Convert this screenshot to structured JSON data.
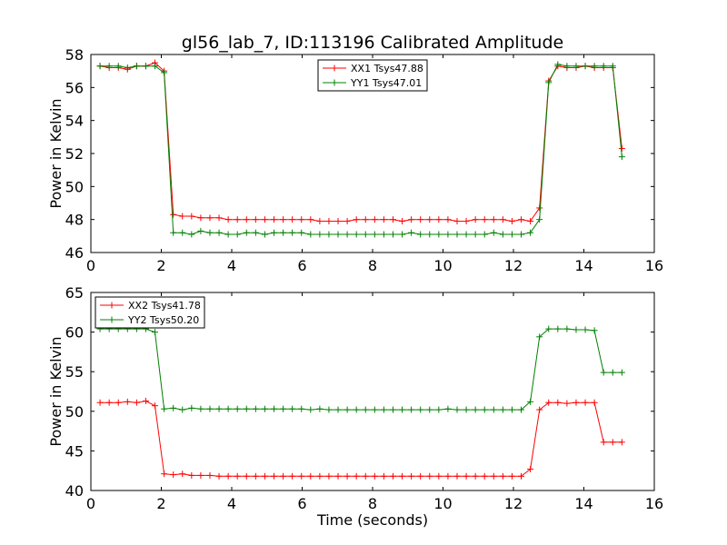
{
  "title": "gl56_lab_7, ID:113196 Calibrated Amplitude",
  "colors": {
    "red": "#ff0000",
    "green": "#008000",
    "axes": "#000000",
    "background": "#ffffff"
  },
  "chart_data": [
    {
      "type": "line",
      "title": "gl56_lab_7, ID:113196 Calibrated Amplitude",
      "xlabel": "",
      "ylabel": "Power in Kelvin",
      "xlim": [
        0,
        16
      ],
      "ylim": [
        46,
        58
      ],
      "xticks": [
        0,
        2,
        4,
        6,
        8,
        10,
        12,
        14,
        16
      ],
      "yticks": [
        46,
        48,
        50,
        52,
        54,
        56,
        58
      ],
      "grid": false,
      "legend_position": "top-center",
      "x": [
        0.26,
        0.52,
        0.78,
        1.04,
        1.3,
        1.56,
        1.82,
        2.08,
        2.34,
        2.6,
        2.86,
        3.12,
        3.38,
        3.64,
        3.9,
        4.16,
        4.42,
        4.68,
        4.94,
        5.2,
        5.46,
        5.72,
        5.98,
        6.24,
        6.5,
        6.76,
        7.02,
        7.28,
        7.54,
        7.8,
        8.06,
        8.32,
        8.58,
        8.84,
        9.1,
        9.36,
        9.62,
        9.88,
        10.14,
        10.4,
        10.66,
        10.92,
        11.18,
        11.44,
        11.7,
        11.96,
        12.22,
        12.48,
        12.74,
        13.0,
        13.26,
        13.52,
        13.78,
        14.04,
        14.3,
        14.56,
        14.82,
        15.08
      ],
      "series": [
        {
          "name": "XX1 Tsys47.88",
          "color": "#ff0000",
          "values": [
            57.3,
            57.2,
            57.2,
            57.1,
            57.3,
            57.3,
            57.5,
            57.0,
            48.3,
            48.2,
            48.2,
            48.1,
            48.1,
            48.1,
            48.0,
            48.0,
            48.0,
            48.0,
            48.0,
            48.0,
            48.0,
            48.0,
            48.0,
            48.0,
            47.9,
            47.9,
            47.9,
            47.9,
            48.0,
            48.0,
            48.0,
            48.0,
            48.0,
            47.9,
            48.0,
            48.0,
            48.0,
            48.0,
            48.0,
            47.9,
            47.9,
            48.0,
            48.0,
            48.0,
            48.0,
            47.9,
            48.0,
            47.9,
            48.7,
            56.4,
            57.3,
            57.2,
            57.2,
            57.3,
            57.2,
            57.2,
            57.2,
            52.3
          ]
        },
        {
          "name": "YY1 Tsys47.01",
          "color": "#008000",
          "values": [
            57.3,
            57.3,
            57.3,
            57.2,
            57.3,
            57.3,
            57.3,
            56.9,
            47.2,
            47.2,
            47.1,
            47.3,
            47.2,
            47.2,
            47.1,
            47.1,
            47.2,
            47.2,
            47.1,
            47.2,
            47.2,
            47.2,
            47.2,
            47.1,
            47.1,
            47.1,
            47.1,
            47.1,
            47.1,
            47.1,
            47.1,
            47.1,
            47.1,
            47.1,
            47.2,
            47.1,
            47.1,
            47.1,
            47.1,
            47.1,
            47.1,
            47.1,
            47.1,
            47.2,
            47.1,
            47.1,
            47.1,
            47.2,
            48.0,
            56.3,
            57.4,
            57.3,
            57.3,
            57.3,
            57.3,
            57.3,
            57.3,
            51.8
          ]
        }
      ]
    },
    {
      "type": "line",
      "title": "",
      "xlabel": "Time (seconds)",
      "ylabel": "Power in Kelvin",
      "xlim": [
        0,
        16
      ],
      "ylim": [
        40,
        65
      ],
      "xticks": [
        0,
        2,
        4,
        6,
        8,
        10,
        12,
        14,
        16
      ],
      "yticks": [
        40,
        45,
        50,
        55,
        60,
        65
      ],
      "grid": false,
      "legend_position": "top-left",
      "x": [
        0.26,
        0.52,
        0.78,
        1.04,
        1.3,
        1.56,
        1.82,
        2.08,
        2.34,
        2.6,
        2.86,
        3.12,
        3.38,
        3.64,
        3.9,
        4.16,
        4.42,
        4.68,
        4.94,
        5.2,
        5.46,
        5.72,
        5.98,
        6.24,
        6.5,
        6.76,
        7.02,
        7.28,
        7.54,
        7.8,
        8.06,
        8.32,
        8.58,
        8.84,
        9.1,
        9.36,
        9.62,
        9.88,
        10.14,
        10.4,
        10.66,
        10.92,
        11.18,
        11.44,
        11.7,
        11.96,
        12.22,
        12.48,
        12.74,
        13.0,
        13.26,
        13.52,
        13.78,
        14.04,
        14.3,
        14.56,
        14.82,
        15.08
      ],
      "series": [
        {
          "name": "XX2 Tsys41.78",
          "color": "#ff0000",
          "values": [
            51.1,
            51.1,
            51.1,
            51.2,
            51.1,
            51.3,
            50.7,
            42.1,
            42.0,
            42.1,
            41.9,
            41.9,
            41.9,
            41.8,
            41.8,
            41.8,
            41.8,
            41.8,
            41.8,
            41.8,
            41.8,
            41.8,
            41.8,
            41.8,
            41.8,
            41.8,
            41.8,
            41.8,
            41.8,
            41.8,
            41.8,
            41.8,
            41.8,
            41.8,
            41.8,
            41.8,
            41.8,
            41.8,
            41.8,
            41.8,
            41.8,
            41.8,
            41.8,
            41.8,
            41.8,
            41.8,
            41.8,
            42.7,
            50.2,
            51.1,
            51.1,
            51.0,
            51.1,
            51.1,
            51.1,
            46.1,
            46.1,
            46.1
          ]
        },
        {
          "name": "YY2 Tsys50.20",
          "color": "#008000",
          "values": [
            60.4,
            60.4,
            60.4,
            60.4,
            60.4,
            60.4,
            60.0,
            50.3,
            50.4,
            50.2,
            50.4,
            50.3,
            50.3,
            50.3,
            50.3,
            50.3,
            50.3,
            50.3,
            50.3,
            50.3,
            50.3,
            50.3,
            50.3,
            50.2,
            50.3,
            50.2,
            50.2,
            50.2,
            50.2,
            50.2,
            50.2,
            50.2,
            50.2,
            50.2,
            50.2,
            50.2,
            50.2,
            50.2,
            50.3,
            50.2,
            50.2,
            50.2,
            50.2,
            50.2,
            50.2,
            50.2,
            50.2,
            51.2,
            59.4,
            60.4,
            60.4,
            60.4,
            60.3,
            60.3,
            60.2,
            54.9,
            54.9,
            54.9
          ]
        }
      ]
    }
  ]
}
